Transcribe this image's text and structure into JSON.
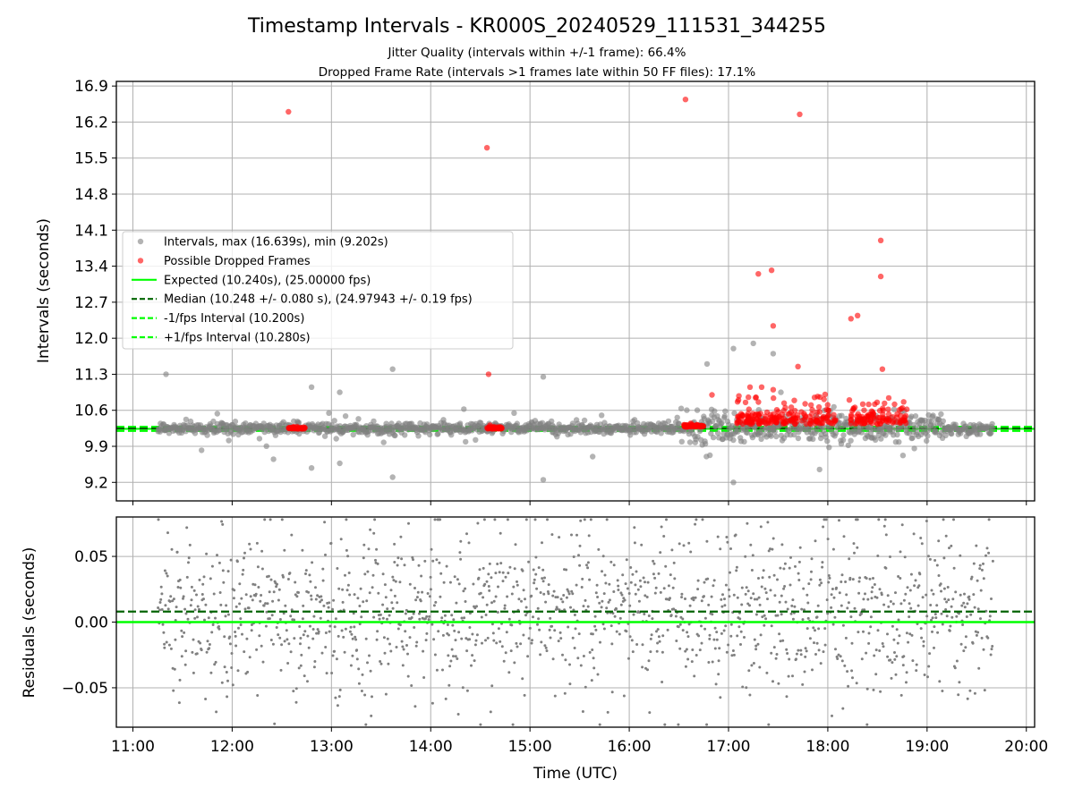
{
  "figure": {
    "title": "Timestamp Intervals - KR000S_20240529_111531_344255",
    "subtitle_1": "Jitter Quality (intervals within +/-1 frame): 66.4%",
    "subtitle_2": "Dropped Frame Rate (intervals >1 frames late within 50 FF files): 17.1%"
  },
  "colors": {
    "intervals": "#808080",
    "dropped": "#ff0000",
    "expected": "#00ff00",
    "median": "#006400",
    "fps_bounds": "#00ff00",
    "grid": "#b0b0b0",
    "residuals": "#808080"
  },
  "chart_data": [
    {
      "type": "scatter",
      "panel": "top",
      "ylabel": "Intervals (seconds)",
      "ylim": [
        8.84,
        16.99
      ],
      "yticks": [
        9.2,
        9.9,
        10.6,
        11.3,
        12.0,
        12.7,
        13.4,
        14.1,
        14.8,
        15.5,
        16.2,
        16.9
      ],
      "ytick_labels": [
        "9.2",
        "9.9",
        "10.6",
        "11.3",
        "12.0",
        "12.7",
        "13.4",
        "14.1",
        "14.8",
        "15.5",
        "16.2",
        "16.9"
      ],
      "xlim": [
        "10:50",
        "20:05"
      ],
      "grid": true,
      "legend_position": "center-left",
      "legend": [
        {
          "label": "Intervals, max (16.639s), min (9.202s)",
          "marker": "dot",
          "color": "#808080"
        },
        {
          "label": "Possible Dropped Frames",
          "marker": "dot",
          "color": "#ff0000"
        },
        {
          "label": "Expected (10.240s), (25.00000 fps)",
          "marker": "solid",
          "color": "#00ff00"
        },
        {
          "label": "Median (10.248 +/- 0.080 s), (24.97943 +/- 0.19 fps)",
          "marker": "dashed",
          "color": "#006400"
        },
        {
          "label": "-1/fps Interval (10.200s)",
          "marker": "dashed",
          "color": "#00ff00"
        },
        {
          "label": "+1/fps Interval (10.280s)",
          "marker": "dashed",
          "color": "#00ff00"
        }
      ],
      "reference_lines": {
        "expected": 10.24,
        "median": 10.248,
        "minus_one_frame": 10.2,
        "plus_one_frame": 10.28
      },
      "series": [
        {
          "name": "Intervals, max (16.639s), min (9.202s)",
          "time_range": [
            "11:15",
            "19:40"
          ],
          "typical_value": 10.24,
          "min": 9.202,
          "max": 16.639,
          "notable_points": [
            {
              "x": "11:20",
              "y": 11.3
            },
            {
              "x": "12:25",
              "y": 9.65
            },
            {
              "x": "12:48",
              "y": 11.05
            },
            {
              "x": "12:48",
              "y": 9.48
            },
            {
              "x": "13:05",
              "y": 10.95
            },
            {
              "x": "13:05",
              "y": 9.57
            },
            {
              "x": "13:37",
              "y": 11.4
            },
            {
              "x": "13:37",
              "y": 9.3
            },
            {
              "x": "15:08",
              "y": 11.25
            },
            {
              "x": "15:08",
              "y": 9.25
            },
            {
              "x": "16:47",
              "y": 11.5
            },
            {
              "x": "17:03",
              "y": 11.8
            },
            {
              "x": "17:03",
              "y": 9.2
            },
            {
              "x": "17:15",
              "y": 11.9
            },
            {
              "x": "17:27",
              "y": 11.7
            },
            {
              "x": "17:55",
              "y": 9.45
            }
          ]
        },
        {
          "name": "Possible Dropped Frames",
          "points": [
            {
              "x": "12:34",
              "y": 16.4
            },
            {
              "x": "14:34",
              "y": 15.7
            },
            {
              "x": "14:35",
              "y": 11.3
            },
            {
              "x": "16:34",
              "y": 16.639
            },
            {
              "x": "17:18",
              "y": 13.25
            },
            {
              "x": "17:26",
              "y": 13.32
            },
            {
              "x": "17:27",
              "y": 12.24
            },
            {
              "x": "17:43",
              "y": 16.35
            },
            {
              "x": "17:42",
              "y": 11.45
            },
            {
              "x": "18:14",
              "y": 12.38
            },
            {
              "x": "18:18",
              "y": 12.44
            },
            {
              "x": "18:32",
              "y": 13.9
            },
            {
              "x": "18:32",
              "y": 13.2
            },
            {
              "x": "18:33",
              "y": 11.4
            },
            {
              "x": "18:13",
              "y": 10.8
            },
            {
              "x": "17:06",
              "y": 10.8
            },
            {
              "x": "17:20",
              "y": 11.05
            },
            {
              "x": "17:13",
              "y": 11.05
            },
            {
              "x": "17:27",
              "y": 11.0
            },
            {
              "x": "16:50",
              "y": 10.9
            },
            {
              "x": "17:52",
              "y": 10.85
            }
          ],
          "clusters": [
            {
              "x_range": [
                "12:34",
                "12:44"
              ],
              "y": 10.26
            },
            {
              "x_range": [
                "14:34",
                "14:44"
              ],
              "y": 10.26
            },
            {
              "x_range": [
                "16:33",
                "16:45"
              ],
              "y": 10.3
            },
            {
              "x_range": [
                "17:05",
                "18:05"
              ],
              "y": 10.35
            },
            {
              "x_range": [
                "18:14",
                "18:48"
              ],
              "y": 10.35
            }
          ]
        }
      ]
    },
    {
      "type": "scatter",
      "panel": "bottom",
      "ylabel": "Residuals (seconds)",
      "xlabel": "Time (UTC)",
      "ylim": [
        -0.08,
        0.08
      ],
      "yticks": [
        -0.05,
        0.0,
        0.05
      ],
      "ytick_labels": [
        "−0.05",
        "0.00",
        "0.05"
      ],
      "xlim": [
        "10:50",
        "20:05"
      ],
      "xticks": [
        "11:00",
        "12:00",
        "13:00",
        "14:00",
        "15:00",
        "16:00",
        "17:00",
        "18:00",
        "19:00",
        "20:00"
      ],
      "grid": true,
      "reference_lines": {
        "zero": 0.0,
        "median_offset": 0.008
      },
      "series": [
        {
          "name": "residuals",
          "time_range": [
            "11:15",
            "19:40"
          ],
          "typical_spread": 0.03,
          "clipped_at_limits": true
        }
      ]
    }
  ]
}
